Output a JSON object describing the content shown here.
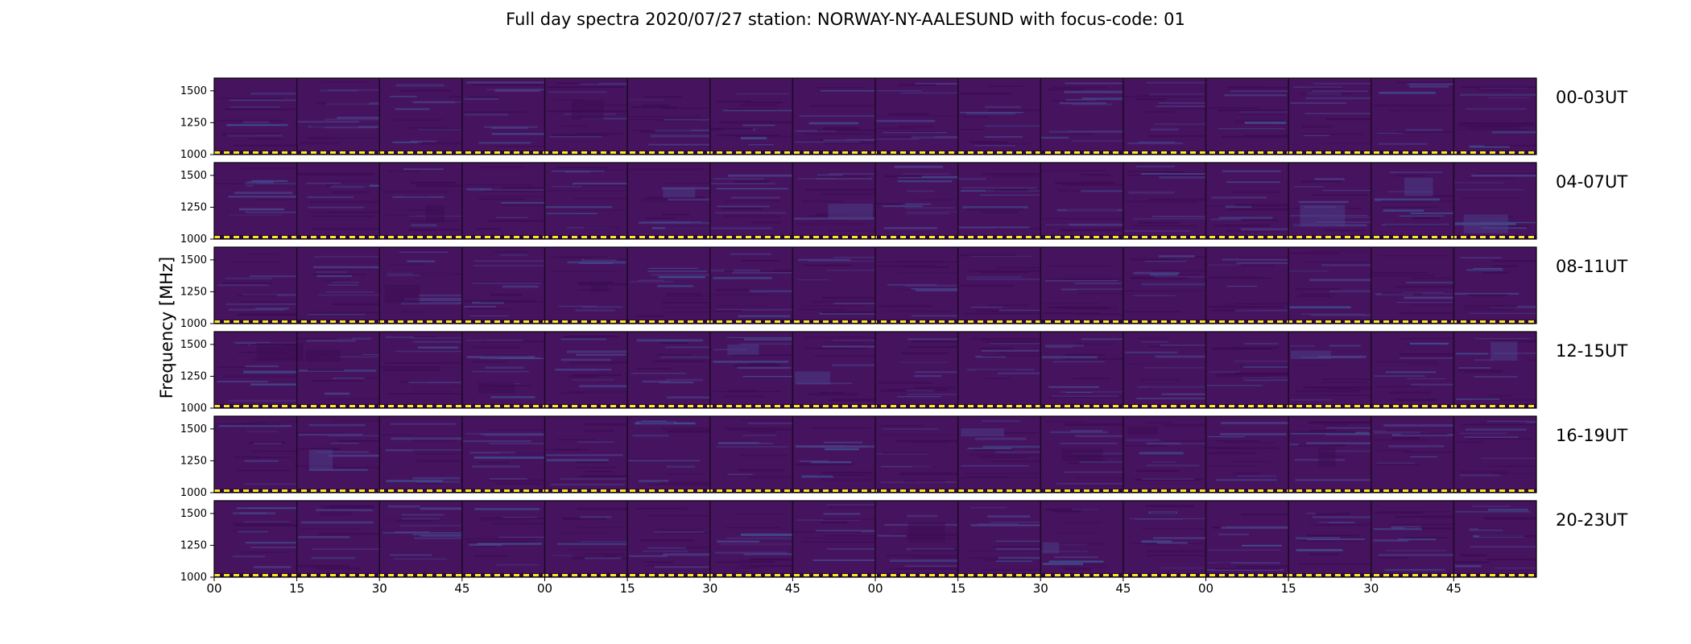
{
  "chart_data": {
    "type": "heatmap",
    "title": "Full day spectra 2020/07/27 station: NORWAY-NY-AALESUND with focus-code: 01",
    "ylabel": "Frequency [MHz]",
    "xlabel": "",
    "ylim": [
      1000,
      1600
    ],
    "yticks": [
      "1000",
      "1250",
      "1500"
    ],
    "ytick_values": [
      1000,
      1250,
      1500
    ],
    "xticks": [
      "00",
      "15",
      "30",
      "45",
      "00",
      "15",
      "30",
      "45",
      "00",
      "15",
      "30",
      "45",
      "00",
      "15",
      "30",
      "45"
    ],
    "rows": [
      "00-03UT",
      "04-07UT",
      "08-11UT",
      "12-15UT",
      "16-19UT",
      "20-23UT"
    ],
    "panels_per_row": 16,
    "colors": {
      "background": "#46135f",
      "band_dark": "#3d0c52",
      "band_light": "#4a3e85",
      "band_bright": "#3f4f8f",
      "dash": "#fde725",
      "gap": "#ffffff",
      "divider": "#1a0a20"
    }
  }
}
